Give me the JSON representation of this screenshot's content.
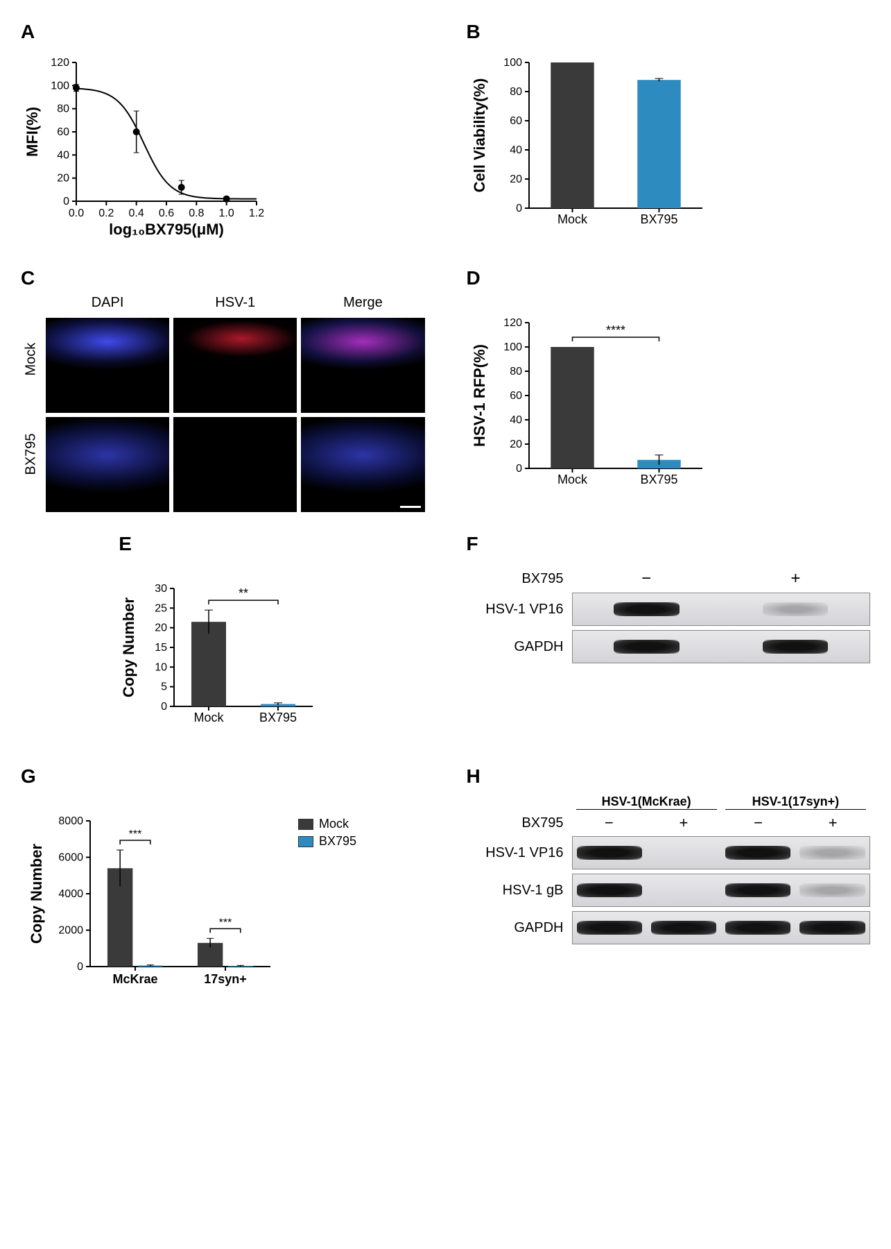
{
  "colors": {
    "mock": "#3a3a3a",
    "bx795": "#2e8bc0",
    "axis": "#000000",
    "bg": "#ffffff"
  },
  "panelA": {
    "label": "A",
    "type": "line",
    "ylabel": "MFI(%)",
    "xlabel": "log₁₀BX795(μM)",
    "xlim": [
      0.0,
      1.2
    ],
    "ylim": [
      0,
      120
    ],
    "xticks": [
      0.0,
      0.2,
      0.4,
      0.6,
      0.8,
      1.0,
      1.2
    ],
    "yticks": [
      0,
      20,
      40,
      60,
      80,
      100,
      120
    ],
    "points": [
      {
        "x": 0.0,
        "y": 98,
        "err": 3
      },
      {
        "x": 0.4,
        "y": 60,
        "err": 18
      },
      {
        "x": 0.7,
        "y": 12,
        "err": 6
      },
      {
        "x": 1.0,
        "y": 2,
        "err": 2
      }
    ],
    "marker_color": "#000000",
    "line_color": "#000000",
    "label_fontsize": 22,
    "tick_fontsize": 16
  },
  "panelB": {
    "label": "B",
    "type": "bar",
    "ylabel": "Cell Viability(%)",
    "ylim": [
      0,
      100
    ],
    "yticks": [
      0,
      20,
      40,
      60,
      80,
      100
    ],
    "categories": [
      "Mock",
      "BX795"
    ],
    "values": [
      100,
      88
    ],
    "errors": [
      0,
      1
    ],
    "bar_colors": [
      "#3a3a3a",
      "#2e8bc0"
    ],
    "bar_width": 0.5
  },
  "panelC": {
    "label": "C",
    "columns": [
      "DAPI",
      "HSV-1",
      "Merge"
    ],
    "rows": [
      "Mock",
      "BX795"
    ],
    "scalebar_row": 1,
    "scalebar_col": 2
  },
  "panelD": {
    "label": "D",
    "type": "bar",
    "ylabel": "HSV-1 RFP(%)",
    "ylim": [
      0,
      120
    ],
    "yticks": [
      0,
      20,
      40,
      60,
      80,
      100,
      120
    ],
    "categories": [
      "Mock",
      "BX795"
    ],
    "values": [
      100,
      7
    ],
    "errors": [
      0,
      4
    ],
    "bar_colors": [
      "#3a3a3a",
      "#2e8bc0"
    ],
    "significance": "****"
  },
  "panelE": {
    "label": "E",
    "type": "bar",
    "ylabel": "Copy Number",
    "ylim": [
      0,
      30
    ],
    "yticks": [
      0,
      5,
      10,
      15,
      20,
      25,
      30
    ],
    "categories": [
      "Mock",
      "BX795"
    ],
    "values": [
      21.5,
      0.6
    ],
    "errors": [
      3,
      0.3
    ],
    "bar_colors": [
      "#3a3a3a",
      "#2e8bc0"
    ],
    "significance": "**"
  },
  "panelF": {
    "label": "F",
    "treatment_label": "BX795",
    "treatments": [
      "−",
      "+"
    ],
    "rows": [
      {
        "label": "HSV-1 VP16",
        "bands": [
          "dark",
          "faint"
        ]
      },
      {
        "label": "GAPDH",
        "bands": [
          "dark",
          "dark"
        ]
      }
    ]
  },
  "panelG": {
    "label": "G",
    "type": "grouped-bar",
    "ylabel": "Copy Number",
    "ylim": [
      0,
      8000
    ],
    "yticks": [
      0,
      2000,
      4000,
      6000,
      8000
    ],
    "groups": [
      "McKrae",
      "17syn+"
    ],
    "series": [
      {
        "name": "Mock",
        "color": "#3a3a3a",
        "values": [
          5400,
          1300
        ],
        "errors": [
          1000,
          250
        ]
      },
      {
        "name": "BX795",
        "color": "#2e8bc0",
        "values": [
          60,
          40
        ],
        "errors": [
          30,
          25
        ]
      }
    ],
    "significance": [
      "***",
      "***"
    ],
    "legend": [
      "Mock",
      "BX795"
    ]
  },
  "panelH": {
    "label": "H",
    "strain_labels": [
      "HSV-1(McKrae)",
      "HSV-1(17syn+)"
    ],
    "treatment_label": "BX795",
    "treatments": [
      "−",
      "+",
      "−",
      "+"
    ],
    "rows": [
      {
        "label": "HSV-1 VP16",
        "bands": [
          "dark",
          "none",
          "dark",
          "faint"
        ]
      },
      {
        "label": "HSV-1 gB",
        "bands": [
          "dark",
          "none",
          "dark",
          "faint"
        ]
      },
      {
        "label": "GAPDH",
        "bands": [
          "dark",
          "dark",
          "dark",
          "dark"
        ]
      }
    ]
  }
}
